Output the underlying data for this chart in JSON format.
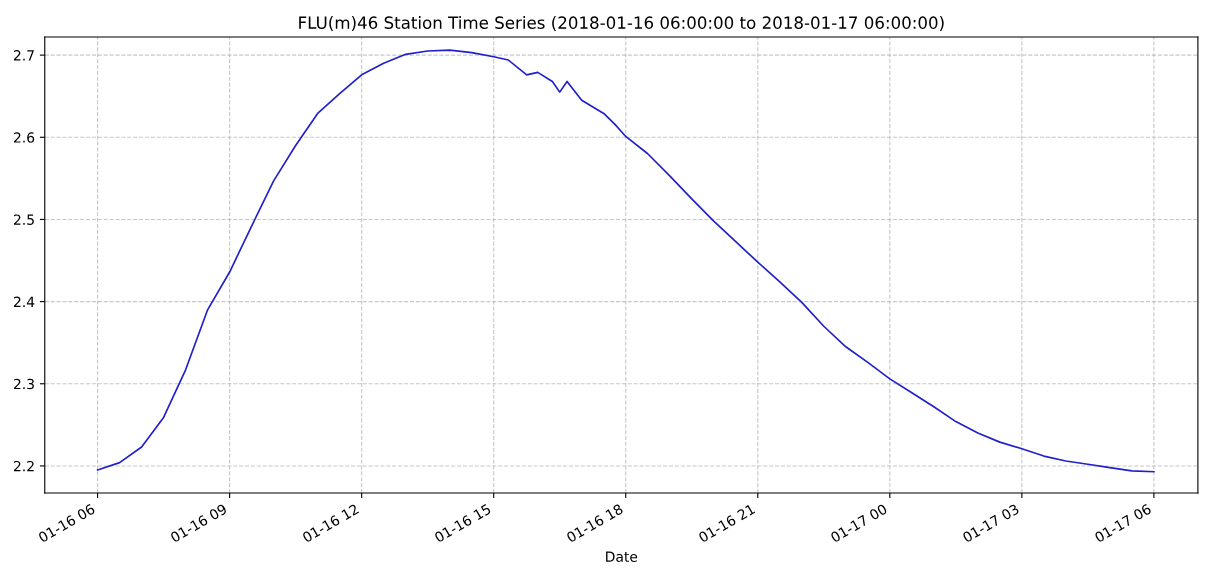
{
  "chart_data": {
    "type": "line",
    "title": "FLU(m)46 Station Time Series (2018-01-16 06:00:00 to 2018-01-17 06:00:00)",
    "xlabel": "Date",
    "x": [
      "2018-01-16T06:00",
      "2018-01-16T06:30",
      "2018-01-16T07:00",
      "2018-01-16T07:30",
      "2018-01-16T08:00",
      "2018-01-16T08:30",
      "2018-01-16T09:00",
      "2018-01-16T09:30",
      "2018-01-16T10:00",
      "2018-01-16T10:30",
      "2018-01-16T11:00",
      "2018-01-16T11:30",
      "2018-01-16T12:00",
      "2018-01-16T12:30",
      "2018-01-16T13:00",
      "2018-01-16T13:30",
      "2018-01-16T14:00",
      "2018-01-16T14:30",
      "2018-01-16T15:00",
      "2018-01-16T15:20",
      "2018-01-16T15:45",
      "2018-01-16T16:00",
      "2018-01-16T16:20",
      "2018-01-16T16:30",
      "2018-01-16T16:40",
      "2018-01-16T17:00",
      "2018-01-16T17:30",
      "2018-01-16T17:45",
      "2018-01-16T18:00",
      "2018-01-16T18:30",
      "2018-01-16T19:00",
      "2018-01-16T19:30",
      "2018-01-16T20:00",
      "2018-01-16T20:30",
      "2018-01-16T21:00",
      "2018-01-16T21:30",
      "2018-01-16T22:00",
      "2018-01-16T22:30",
      "2018-01-16T23:00",
      "2018-01-16T23:30",
      "2018-01-17T00:00",
      "2018-01-17T00:30",
      "2018-01-17T01:00",
      "2018-01-17T01:30",
      "2018-01-17T02:00",
      "2018-01-17T02:30",
      "2018-01-17T03:00",
      "2018-01-17T03:30",
      "2018-01-17T04:00",
      "2018-01-17T04:30",
      "2018-01-17T05:00",
      "2018-01-17T05:30",
      "2018-01-17T06:00"
    ],
    "series": [
      {
        "color": "#2020cc",
        "values": [
          2.195,
          2.204,
          2.223,
          2.259,
          2.317,
          2.39,
          2.436,
          2.492,
          2.547,
          2.59,
          2.629,
          2.653,
          2.676,
          2.69,
          2.701,
          2.705,
          2.706,
          2.703,
          2.698,
          2.694,
          2.676,
          2.679,
          2.668,
          2.655,
          2.668,
          2.645,
          2.629,
          2.616,
          2.601,
          2.58,
          2.553,
          2.525,
          2.498,
          2.473,
          2.448,
          2.424,
          2.399,
          2.37,
          2.345,
          2.326,
          2.306,
          2.289,
          2.272,
          2.254,
          2.24,
          2.229,
          2.221,
          2.212,
          2.206,
          2.202,
          2.198,
          2.194,
          2.193
        ]
      }
    ],
    "xlim": [
      "2018-01-16T04:48",
      "2018-01-17T07:00"
    ],
    "xticks": [
      {
        "value": "2018-01-16T06:00",
        "label": "01-16 06"
      },
      {
        "value": "2018-01-16T09:00",
        "label": "01-16 09"
      },
      {
        "value": "2018-01-16T12:00",
        "label": "01-16 12"
      },
      {
        "value": "2018-01-16T15:00",
        "label": "01-16 15"
      },
      {
        "value": "2018-01-16T18:00",
        "label": "01-16 18"
      },
      {
        "value": "2018-01-16T21:00",
        "label": "01-16 21"
      },
      {
        "value": "2018-01-17T00:00",
        "label": "01-17 00"
      },
      {
        "value": "2018-01-17T03:00",
        "label": "01-17 03"
      },
      {
        "value": "2018-01-17T06:00",
        "label": "01-17 06"
      }
    ],
    "ylim": [
      2.167,
      2.722
    ],
    "yticks": [
      2.2,
      2.3,
      2.4,
      2.5,
      2.6,
      2.7
    ],
    "grid": true,
    "line_style": "solid"
  }
}
